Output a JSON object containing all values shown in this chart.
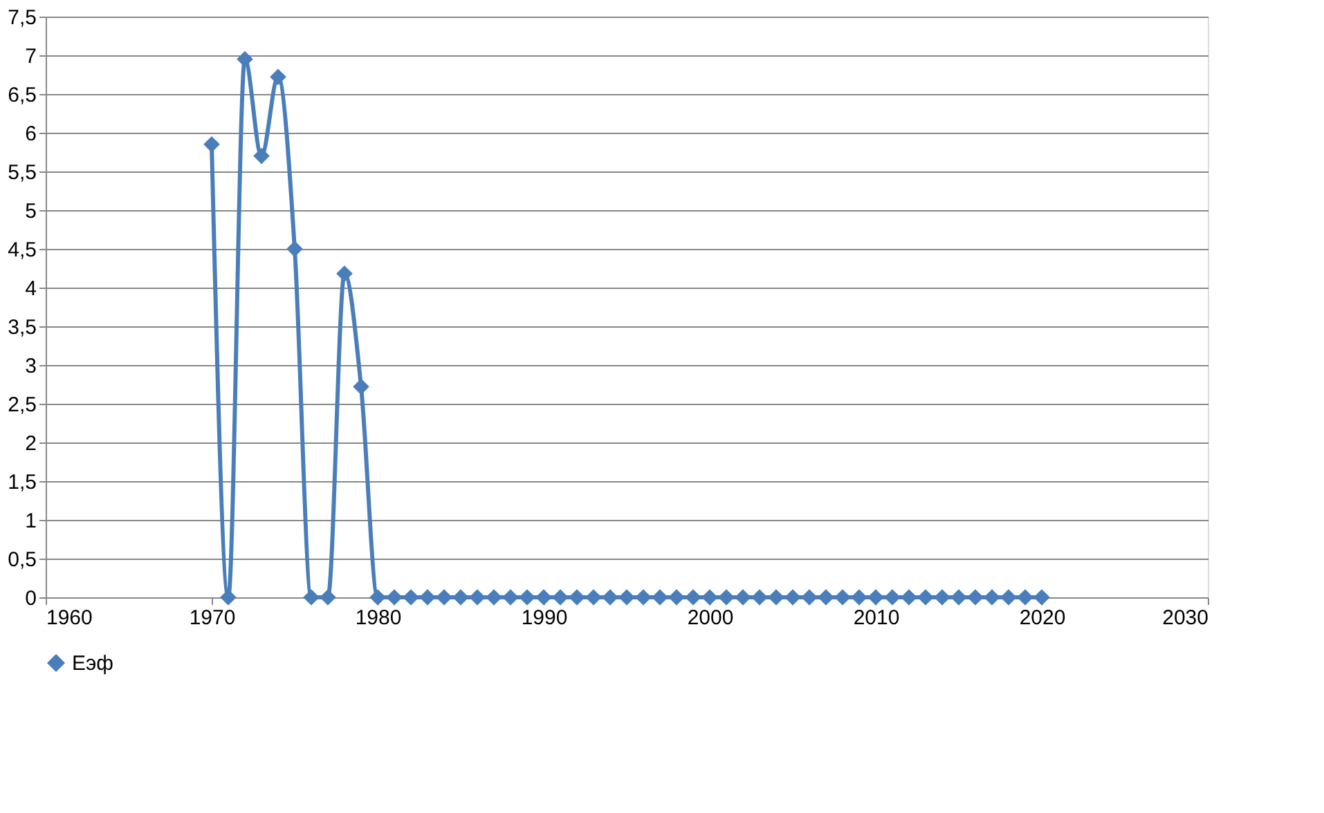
{
  "chart_data": {
    "type": "line",
    "x": [
      1970,
      1971,
      1972,
      1973,
      1974,
      1975,
      1976,
      1977,
      1978,
      1979,
      1980,
      1981,
      1982,
      1983,
      1984,
      1985,
      1986,
      1987,
      1988,
      1989,
      1990,
      1991,
      1992,
      1993,
      1994,
      1995,
      1996,
      1997,
      1998,
      1999,
      2000,
      2001,
      2002,
      2003,
      2004,
      2005,
      2006,
      2007,
      2008,
      2009,
      2010,
      2011,
      2012,
      2013,
      2014,
      2015,
      2016,
      2017,
      2018,
      2019,
      2020
    ],
    "series": [
      {
        "name": "Еэф",
        "color": "#4a7ebb",
        "values": [
          5.85,
          0,
          6.95,
          5.7,
          6.72,
          4.5,
          0,
          0,
          4.18,
          2.72,
          0,
          0,
          0,
          0,
          0,
          0,
          0,
          0,
          0,
          0,
          0,
          0,
          0,
          0,
          0,
          0,
          0,
          0,
          0,
          0,
          0,
          0,
          0,
          0,
          0,
          0,
          0,
          0,
          0,
          0,
          0,
          0,
          0,
          0,
          0,
          0,
          0,
          0,
          0,
          0,
          0
        ]
      }
    ],
    "xlim": [
      1960,
      2030
    ],
    "xticks": [
      1960,
      1970,
      1980,
      1990,
      2000,
      2010,
      2020,
      2030
    ],
    "ylim": [
      0,
      7.5
    ],
    "yticks": [
      0,
      {
        "value": 0.5,
        "label": "0,5"
      },
      1,
      {
        "value": 1.5,
        "label": "1,5"
      },
      2,
      {
        "value": 2.5,
        "label": "2,5"
      },
      3,
      {
        "value": 3.5,
        "label": "3,5"
      },
      4,
      {
        "value": 4.5,
        "label": "4,5"
      },
      5,
      {
        "value": 5.5,
        "label": "5,5"
      },
      6,
      {
        "value": 6.5,
        "label": "6,5"
      },
      7,
      {
        "value": 7.5,
        "label": "7,5"
      }
    ],
    "grid": "y",
    "legend": "bottom",
    "marker": "diamond",
    "line_style": "solid"
  }
}
